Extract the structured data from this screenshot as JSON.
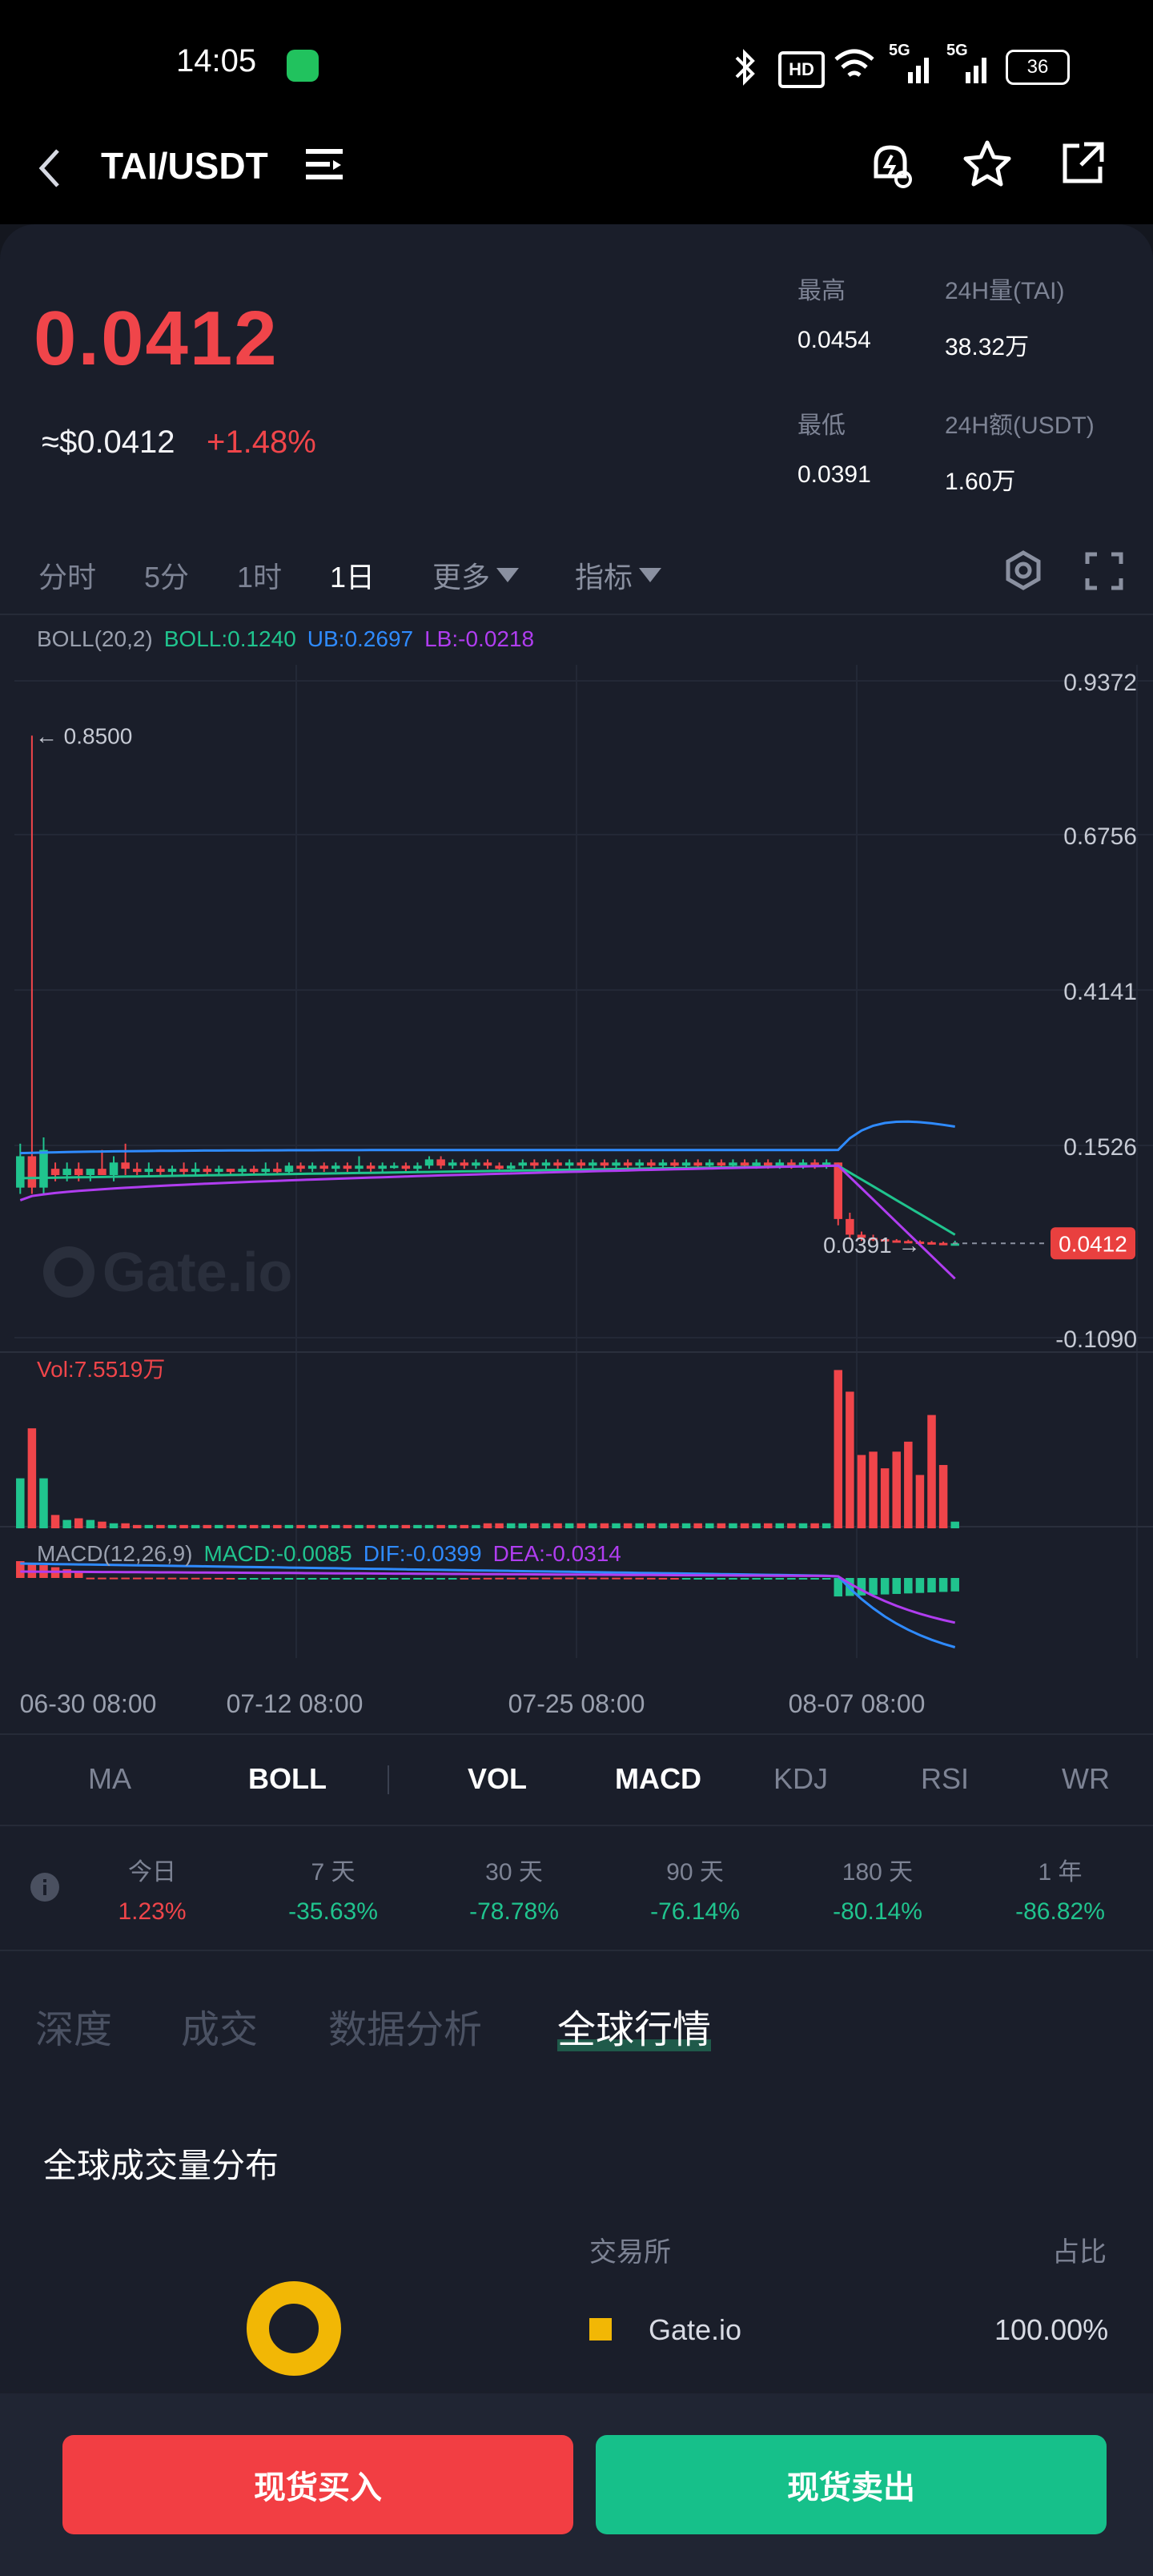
{
  "status_bar": {
    "time": "14:05",
    "battery": "36",
    "hd_badge": "HD",
    "net1": "5G",
    "net2": "5G"
  },
  "header": {
    "pair": "TAI/USDT"
  },
  "ticker": {
    "price": "0.0412",
    "usd_price": "≈$0.0412",
    "change": "+1.48%",
    "high_label": "最高",
    "high_value": "0.0454",
    "vol24_label": "24H量(TAI)",
    "vol24_value": "38.32万",
    "low_label": "最低",
    "low_value": "0.0391",
    "amt24_label": "24H额(USDT)",
    "amt24_value": "1.60万"
  },
  "timeframes": [
    "分时",
    "5分",
    "1时",
    "1日"
  ],
  "more_label": "更多",
  "indicator_label": "指标",
  "legend": {
    "boll_title": "BOLL(20,2)",
    "boll": "BOLL:0.1240",
    "ub": "UB:0.2697",
    "lb": "LB:-0.0218",
    "vol": "Vol:7.5519万",
    "macd_title": "MACD(12,26,9)",
    "macd": "MACD:-0.0085",
    "dif": "DIF:-0.0399",
    "dea": "DEA:-0.0314"
  },
  "colors": {
    "up": "#20c48e",
    "down": "#f0454a",
    "ub": "#2f8bff",
    "boll": "#20c48e",
    "lb": "#b03df0",
    "accent_buy": "#f0454a",
    "accent_sell": "#16c08a"
  },
  "watermark": "Gate.io",
  "chart_data": {
    "type": "candlestick",
    "y_ticks": [
      "0.9372",
      "0.6756",
      "0.4141",
      "0.1526",
      "-0.1090"
    ],
    "ylim": [
      -0.109,
      0.9372
    ],
    "x_ticks": [
      "06-30 08:00",
      "07-12 08:00",
      "07-25 08:00",
      "08-07 08:00"
    ],
    "max_marker": "0.8500",
    "min_marker": "0.0391",
    "last_price": "0.0412",
    "candles": [
      {
        "o": 0.13,
        "c": 0.18,
        "h": 0.2,
        "l": 0.12
      },
      {
        "o": 0.18,
        "c": 0.13,
        "h": 0.85,
        "l": 0.12
      },
      {
        "o": 0.13,
        "c": 0.19,
        "h": 0.21,
        "l": 0.12
      },
      {
        "o": 0.16,
        "c": 0.15,
        "h": 0.17,
        "l": 0.14
      },
      {
        "o": 0.15,
        "c": 0.16,
        "h": 0.17,
        "l": 0.14
      },
      {
        "o": 0.16,
        "c": 0.15,
        "h": 0.17,
        "l": 0.14
      },
      {
        "o": 0.15,
        "c": 0.16,
        "h": 0.16,
        "l": 0.14
      },
      {
        "o": 0.16,
        "c": 0.15,
        "h": 0.19,
        "l": 0.15
      },
      {
        "o": 0.15,
        "c": 0.17,
        "h": 0.18,
        "l": 0.14
      },
      {
        "o": 0.17,
        "c": 0.16,
        "h": 0.2,
        "l": 0.15
      },
      {
        "o": 0.16,
        "c": 0.155,
        "h": 0.17,
        "l": 0.15
      },
      {
        "o": 0.155,
        "c": 0.16,
        "h": 0.17,
        "l": 0.15
      },
      {
        "o": 0.16,
        "c": 0.155,
        "h": 0.165,
        "l": 0.15
      },
      {
        "o": 0.155,
        "c": 0.16,
        "h": 0.165,
        "l": 0.15
      },
      {
        "o": 0.16,
        "c": 0.155,
        "h": 0.17,
        "l": 0.15
      },
      {
        "o": 0.155,
        "c": 0.16,
        "h": 0.17,
        "l": 0.15
      },
      {
        "o": 0.16,
        "c": 0.155,
        "h": 0.165,
        "l": 0.15
      },
      {
        "o": 0.155,
        "c": 0.16,
        "h": 0.165,
        "l": 0.15
      },
      {
        "o": 0.16,
        "c": 0.155,
        "h": 0.16,
        "l": 0.15
      },
      {
        "o": 0.155,
        "c": 0.16,
        "h": 0.165,
        "l": 0.15
      },
      {
        "o": 0.16,
        "c": 0.155,
        "h": 0.165,
        "l": 0.15
      },
      {
        "o": 0.155,
        "c": 0.16,
        "h": 0.17,
        "l": 0.15
      },
      {
        "o": 0.16,
        "c": 0.155,
        "h": 0.17,
        "l": 0.15
      },
      {
        "o": 0.155,
        "c": 0.165,
        "h": 0.17,
        "l": 0.15
      },
      {
        "o": 0.165,
        "c": 0.16,
        "h": 0.17,
        "l": 0.155
      },
      {
        "o": 0.16,
        "c": 0.165,
        "h": 0.17,
        "l": 0.155
      },
      {
        "o": 0.165,
        "c": 0.16,
        "h": 0.17,
        "l": 0.155
      },
      {
        "o": 0.16,
        "c": 0.165,
        "h": 0.17,
        "l": 0.155
      },
      {
        "o": 0.165,
        "c": 0.16,
        "h": 0.17,
        "l": 0.155
      },
      {
        "o": 0.16,
        "c": 0.165,
        "h": 0.18,
        "l": 0.155
      },
      {
        "o": 0.165,
        "c": 0.16,
        "h": 0.17,
        "l": 0.155
      },
      {
        "o": 0.16,
        "c": 0.165,
        "h": 0.17,
        "l": 0.155
      },
      {
        "o": 0.165,
        "c": 0.165,
        "h": 0.17,
        "l": 0.16
      },
      {
        "o": 0.165,
        "c": 0.16,
        "h": 0.17,
        "l": 0.155
      },
      {
        "o": 0.16,
        "c": 0.165,
        "h": 0.17,
        "l": 0.155
      },
      {
        "o": 0.165,
        "c": 0.175,
        "h": 0.18,
        "l": 0.16
      },
      {
        "o": 0.175,
        "c": 0.165,
        "h": 0.18,
        "l": 0.16
      },
      {
        "o": 0.165,
        "c": 0.17,
        "h": 0.175,
        "l": 0.16
      },
      {
        "o": 0.17,
        "c": 0.165,
        "h": 0.175,
        "l": 0.16
      },
      {
        "o": 0.165,
        "c": 0.17,
        "h": 0.175,
        "l": 0.16
      },
      {
        "o": 0.17,
        "c": 0.165,
        "h": 0.175,
        "l": 0.16
      },
      {
        "o": 0.165,
        "c": 0.16,
        "h": 0.17,
        "l": 0.155
      },
      {
        "o": 0.16,
        "c": 0.165,
        "h": 0.17,
        "l": 0.155
      },
      {
        "o": 0.165,
        "c": 0.17,
        "h": 0.175,
        "l": 0.16
      },
      {
        "o": 0.17,
        "c": 0.165,
        "h": 0.175,
        "l": 0.16
      },
      {
        "o": 0.165,
        "c": 0.17,
        "h": 0.175,
        "l": 0.16
      },
      {
        "o": 0.17,
        "c": 0.165,
        "h": 0.175,
        "l": 0.16
      },
      {
        "o": 0.165,
        "c": 0.17,
        "h": 0.175,
        "l": 0.16
      },
      {
        "o": 0.17,
        "c": 0.165,
        "h": 0.175,
        "l": 0.16
      },
      {
        "o": 0.165,
        "c": 0.17,
        "h": 0.175,
        "l": 0.16
      },
      {
        "o": 0.17,
        "c": 0.165,
        "h": 0.175,
        "l": 0.16
      },
      {
        "o": 0.165,
        "c": 0.17,
        "h": 0.175,
        "l": 0.16
      },
      {
        "o": 0.17,
        "c": 0.165,
        "h": 0.175,
        "l": 0.16
      },
      {
        "o": 0.165,
        "c": 0.17,
        "h": 0.175,
        "l": 0.16
      },
      {
        "o": 0.17,
        "c": 0.165,
        "h": 0.175,
        "l": 0.16
      },
      {
        "o": 0.165,
        "c": 0.17,
        "h": 0.175,
        "l": 0.16
      },
      {
        "o": 0.17,
        "c": 0.165,
        "h": 0.175,
        "l": 0.16
      },
      {
        "o": 0.165,
        "c": 0.17,
        "h": 0.175,
        "l": 0.16
      },
      {
        "o": 0.17,
        "c": 0.165,
        "h": 0.175,
        "l": 0.16
      },
      {
        "o": 0.165,
        "c": 0.17,
        "h": 0.175,
        "l": 0.16
      },
      {
        "o": 0.17,
        "c": 0.165,
        "h": 0.175,
        "l": 0.16
      },
      {
        "o": 0.165,
        "c": 0.17,
        "h": 0.175,
        "l": 0.16
      },
      {
        "o": 0.17,
        "c": 0.165,
        "h": 0.175,
        "l": 0.16
      },
      {
        "o": 0.165,
        "c": 0.17,
        "h": 0.175,
        "l": 0.16
      },
      {
        "o": 0.17,
        "c": 0.165,
        "h": 0.175,
        "l": 0.16
      },
      {
        "o": 0.165,
        "c": 0.17,
        "h": 0.175,
        "l": 0.16
      },
      {
        "o": 0.17,
        "c": 0.165,
        "h": 0.175,
        "l": 0.16
      },
      {
        "o": 0.165,
        "c": 0.17,
        "h": 0.175,
        "l": 0.16
      },
      {
        "o": 0.17,
        "c": 0.165,
        "h": 0.175,
        "l": 0.16
      },
      {
        "o": 0.165,
        "c": 0.17,
        "h": 0.175,
        "l": 0.16
      },
      {
        "o": 0.17,
        "c": 0.08,
        "h": 0.17,
        "l": 0.07
      },
      {
        "o": 0.08,
        "c": 0.055,
        "h": 0.09,
        "l": 0.05
      },
      {
        "o": 0.055,
        "c": 0.05,
        "h": 0.06,
        "l": 0.045
      },
      {
        "o": 0.05,
        "c": 0.048,
        "h": 0.055,
        "l": 0.045
      },
      {
        "o": 0.048,
        "c": 0.046,
        "h": 0.05,
        "l": 0.044
      },
      {
        "o": 0.046,
        "c": 0.045,
        "h": 0.048,
        "l": 0.043
      },
      {
        "o": 0.045,
        "c": 0.044,
        "h": 0.047,
        "l": 0.042
      },
      {
        "o": 0.044,
        "c": 0.043,
        "h": 0.046,
        "l": 0.041
      },
      {
        "o": 0.043,
        "c": 0.042,
        "h": 0.045,
        "l": 0.04
      },
      {
        "o": 0.042,
        "c": 0.041,
        "h": 0.044,
        "l": 0.039
      },
      {
        "o": 0.041,
        "c": 0.0412,
        "h": 0.0454,
        "l": 0.0391
      }
    ],
    "volumes": [
      0.3,
      0.6,
      0.3,
      0.08,
      0.05,
      0.06,
      0.05,
      0.04,
      0.03,
      0.03,
      0.02,
      0.02,
      0.02,
      0.02,
      0.02,
      0.02,
      0.02,
      0.02,
      0.02,
      0.02,
      0.02,
      0.02,
      0.02,
      0.02,
      0.02,
      0.02,
      0.02,
      0.02,
      0.02,
      0.02,
      0.02,
      0.02,
      0.02,
      0.02,
      0.02,
      0.02,
      0.02,
      0.02,
      0.02,
      0.02,
      0.03,
      0.03,
      0.03,
      0.03,
      0.03,
      0.03,
      0.03,
      0.03,
      0.03,
      0.03,
      0.03,
      0.03,
      0.03,
      0.03,
      0.03,
      0.03,
      0.03,
      0.03,
      0.03,
      0.03,
      0.03,
      0.03,
      0.03,
      0.03,
      0.03,
      0.03,
      0.03,
      0.03,
      0.03,
      0.03,
      0.95,
      0.82,
      0.44,
      0.46,
      0.36,
      0.46,
      0.52,
      0.32,
      0.68,
      0.38,
      0.04
    ]
  },
  "indicators": [
    "MA",
    "BOLL",
    "VOL",
    "MACD",
    "KDJ",
    "RSI",
    "WR"
  ],
  "periods": [
    {
      "label": "今日",
      "value": "1.23%"
    },
    {
      "label": "7 天",
      "value": "-35.63%"
    },
    {
      "label": "30 天",
      "value": "-78.78%"
    },
    {
      "label": "90 天",
      "value": "-76.14%"
    },
    {
      "label": "180 天",
      "value": "-80.14%"
    },
    {
      "label": "1 年",
      "value": "-86.82%"
    }
  ],
  "section_tabs": [
    "深度",
    "成交",
    "数据分析",
    "全球行情"
  ],
  "global": {
    "title": "全球成交量分布",
    "col_exchange": "交易所",
    "col_share": "占比",
    "exchange": "Gate.io",
    "share": "100.00%",
    "donut_color": "#f2b705"
  },
  "actions": {
    "buy": "现货买入",
    "sell": "现货卖出"
  }
}
